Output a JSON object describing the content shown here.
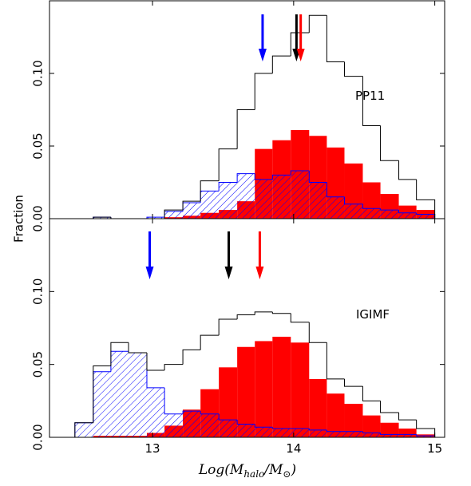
{
  "chart_data": [
    {
      "type": "histogram",
      "label": "PP11",
      "bins": [
        12.45,
        12.58,
        12.705,
        12.83,
        12.96,
        13.085,
        13.215,
        13.34,
        13.47,
        13.6,
        13.725,
        13.85,
        13.98,
        14.11,
        14.235,
        14.36,
        14.49,
        14.615,
        14.745,
        14.87,
        15.0
      ],
      "series": [
        {
          "name": "red",
          "style": "filled",
          "color": "#ff0000",
          "values": [
            0,
            0,
            0,
            0,
            0,
            0.001,
            0.002,
            0.004,
            0.006,
            0.012,
            0.048,
            0.054,
            0.061,
            0.057,
            0.049,
            0.038,
            0.025,
            0.017,
            0.009,
            0.006
          ]
        },
        {
          "name": "blue",
          "style": "hatched",
          "color": "#0000ff",
          "values": [
            0,
            0.001,
            0,
            0,
            0.001,
            0.005,
            0.011,
            0.019,
            0.025,
            0.031,
            0.027,
            0.03,
            0.033,
            0.025,
            0.015,
            0.01,
            0.007,
            0.006,
            0.004,
            0.003
          ]
        },
        {
          "name": "black",
          "style": "outline",
          "color": "#000000",
          "values": [
            0,
            0.001,
            0,
            0,
            0,
            0.006,
            0.012,
            0.026,
            0.048,
            0.075,
            0.1,
            0.112,
            0.128,
            0.14,
            0.108,
            0.098,
            0.064,
            0.04,
            0.027,
            0.013
          ]
        }
      ],
      "markers": [
        {
          "value": 13.78,
          "color": "#0000ff"
        },
        {
          "value": 14.02,
          "color": "#000000"
        },
        {
          "value": 14.05,
          "color": "#ff0000"
        }
      ],
      "xlim": [
        12.27,
        15.07
      ],
      "xticks": [
        13,
        14,
        15
      ],
      "xtick_labels": false,
      "ylim": [
        0,
        0.15
      ],
      "yticks": [
        {
          "value": 0,
          "label": "0.00"
        },
        {
          "value": 0.05,
          "label": "0.05"
        },
        {
          "value": 0.1,
          "label": "0.10"
        }
      ]
    },
    {
      "type": "histogram",
      "label": "IGIMF",
      "bins": [
        12.45,
        12.58,
        12.705,
        12.83,
        12.96,
        13.085,
        13.215,
        13.34,
        13.47,
        13.6,
        13.725,
        13.85,
        13.98,
        14.11,
        14.235,
        14.36,
        14.49,
        14.615,
        14.745,
        14.87,
        15.0
      ],
      "series": [
        {
          "name": "red",
          "style": "filled",
          "color": "#ff0000",
          "values": [
            0,
            0.001,
            0.001,
            0.001,
            0.003,
            0.008,
            0.019,
            0.033,
            0.048,
            0.062,
            0.066,
            0.069,
            0.065,
            0.04,
            0.03,
            0.023,
            0.015,
            0.01,
            0.006,
            0.002
          ]
        },
        {
          "name": "blue",
          "style": "hatched",
          "color": "#0000ff",
          "values": [
            0.01,
            0.045,
            0.059,
            0.058,
            0.034,
            0.016,
            0.018,
            0.016,
            0.012,
            0.009,
            0.007,
            0.006,
            0.006,
            0.005,
            0.004,
            0.004,
            0.003,
            0.002,
            0.002,
            0.001
          ]
        },
        {
          "name": "black",
          "style": "outline",
          "color": "#000000",
          "values": [
            0.01,
            0.049,
            0.065,
            0.058,
            0.046,
            0.05,
            0.06,
            0.07,
            0.081,
            0.084,
            0.086,
            0.085,
            0.079,
            0.065,
            0.04,
            0.035,
            0.025,
            0.017,
            0.012,
            0.006
          ]
        }
      ],
      "markers": [
        {
          "value": 12.98,
          "color": "#0000ff"
        },
        {
          "value": 13.54,
          "color": "#000000"
        },
        {
          "value": 13.76,
          "color": "#ff0000"
        }
      ],
      "xlim": [
        12.27,
        15.07
      ],
      "xticks": [
        13,
        14,
        15
      ],
      "xtick_labels": true,
      "ylim": [
        0,
        0.15
      ],
      "yticks": [
        {
          "value": 0,
          "label": "0.00"
        },
        {
          "value": 0.05,
          "label": "0.05"
        },
        {
          "value": 0.1,
          "label": "0.10"
        }
      ]
    }
  ],
  "ylabel": "Fraction",
  "xlabel": [
    {
      "text": "Log(M"
    },
    {
      "text": "halo",
      "sub": true
    },
    {
      "text": "/M"
    },
    {
      "text": "⊙",
      "sub": true
    },
    {
      "text": ")"
    }
  ]
}
